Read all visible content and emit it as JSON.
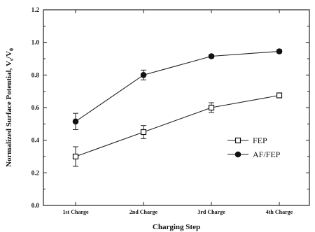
{
  "chart_data": {
    "type": "line",
    "title": "",
    "xlabel": "Charging Step",
    "ylabel": "Normalized Surface Potential, V",
    "ylabel_sub1": "s",
    "ylabel_mid": "/V",
    "ylabel_sub2": "0",
    "categories": [
      "1st Charge",
      "2nd Charge",
      "3rd Charge",
      "4th Charge"
    ],
    "ylim": [
      0.0,
      1.2
    ],
    "yticks": [
      "0.0",
      "0.2",
      "0.4",
      "0.6",
      "0.8",
      "1.0",
      "1.2"
    ],
    "grid": false,
    "legend_position": "lower-right",
    "series": [
      {
        "name": "FEP",
        "marker": "open-square",
        "values": [
          0.3,
          0.45,
          0.6,
          0.675
        ],
        "errors": [
          0.06,
          0.04,
          0.03,
          0.01
        ]
      },
      {
        "name": "AF/FEP",
        "marker": "filled-circle",
        "values": [
          0.515,
          0.8,
          0.915,
          0.945
        ],
        "errors": [
          0.05,
          0.03,
          0.01,
          0.01
        ]
      }
    ]
  }
}
